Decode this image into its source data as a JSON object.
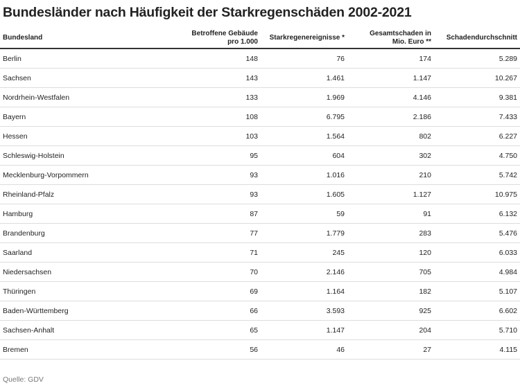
{
  "title": "Bundesländer nach Häufigkeit der Starkregenschäden 2002-2021",
  "table": {
    "header": [
      "Bundesland",
      "Betroffene Gebäude pro 1.000",
      "Starkregenereignisse *",
      "Gesamtschaden in Mio. Euro **",
      "Schadendurchschnitt"
    ],
    "rows": [
      [
        "Berlin",
        "148",
        "76",
        "174",
        "5.289"
      ],
      [
        "Sachsen",
        "143",
        "1.461",
        "1.147",
        "10.267"
      ],
      [
        "Nordrhein-Westfalen",
        "133",
        "1.969",
        "4.146",
        "9.381"
      ],
      [
        "Bayern",
        "108",
        "6.795",
        "2.186",
        "7.433"
      ],
      [
        "Hessen",
        "103",
        "1.564",
        "802",
        "6.227"
      ],
      [
        "Schleswig-Holstein",
        "95",
        "604",
        "302",
        "4.750"
      ],
      [
        "Mecklenburg-Vorpommern",
        "93",
        "1.016",
        "210",
        "5.742"
      ],
      [
        "Rheinland-Pfalz",
        "93",
        "1.605",
        "1.127",
        "10.975"
      ],
      [
        "Hamburg",
        "87",
        "59",
        "91",
        "6.132"
      ],
      [
        "Brandenburg",
        "77",
        "1.779",
        "283",
        "5.476"
      ],
      [
        "Saarland",
        "71",
        "245",
        "120",
        "6.033"
      ],
      [
        "Niedersachsen",
        "70",
        "2.146",
        "705",
        "4.984"
      ],
      [
        "Thüringen",
        "69",
        "1.164",
        "182",
        "5.107"
      ],
      [
        "Baden-Württemberg",
        "66",
        "3.593",
        "925",
        "6.602"
      ],
      [
        "Sachsen-Anhalt",
        "65",
        "1.147",
        "204",
        "5.710"
      ],
      [
        "Bremen",
        "56",
        "46",
        "27",
        "4.115"
      ]
    ]
  },
  "source": "Quelle: GDV"
}
